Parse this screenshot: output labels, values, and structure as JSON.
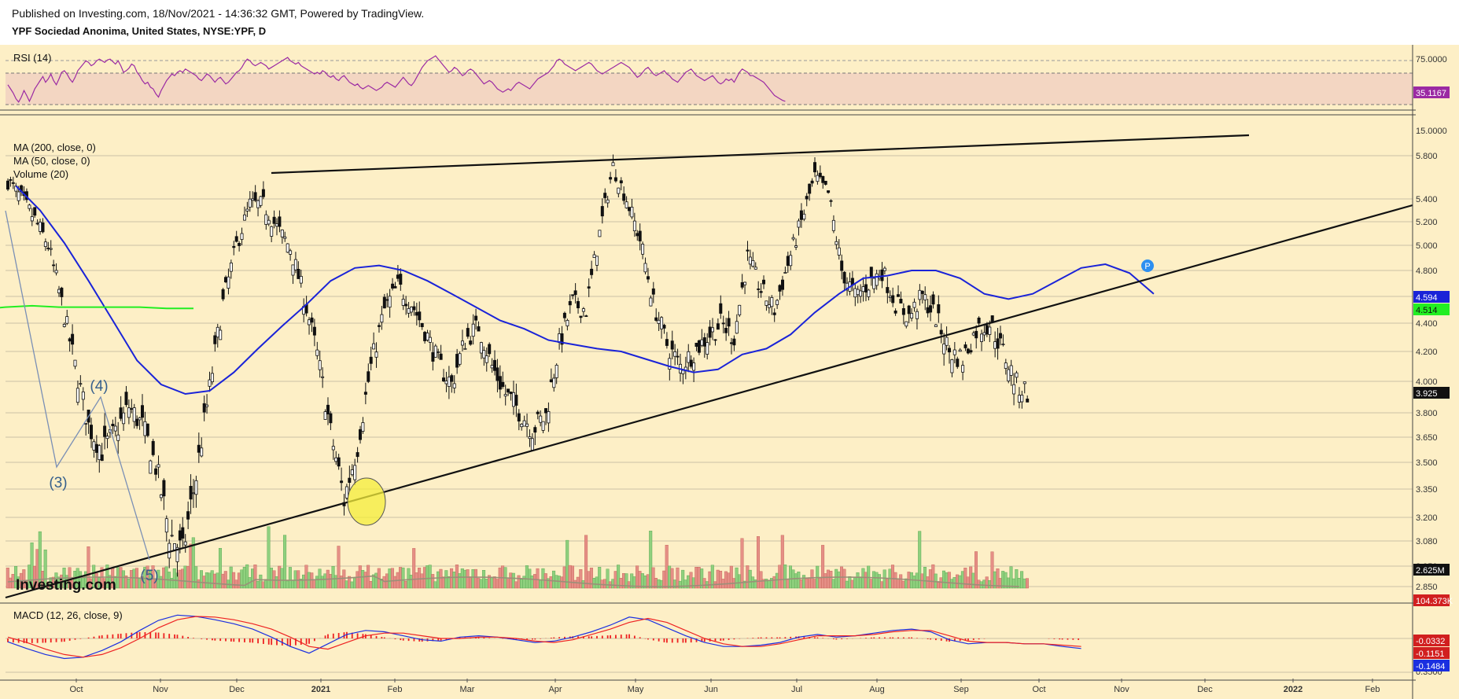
{
  "header": {
    "published": "Published on Investing.com, 18/Nov/2021 - 14:36:32 GMT, Powered by TradingView.",
    "symbol": "YPF Sociedad Anonima, United States, NYSE:YPF, D"
  },
  "watermark": "Investing.com",
  "colors": {
    "background": "#fdefc6",
    "ma200": "#22ee22",
    "ma50": "#1a23d8",
    "rsi": "#9b2aa3",
    "rsi_band": "#f3d6c2",
    "vol_up": "#8fd07e",
    "vol_down": "#e58f86",
    "macd": "#1a2fe0",
    "signal": "#ee2222"
  },
  "chart_data": [
    {
      "type": "line",
      "panel": "rsi",
      "title": "RSI (14)",
      "y_ticks": [
        "75.0000",
        "15.0000"
      ],
      "last_value_label": "35.1167",
      "band": [
        30,
        70
      ],
      "x_start": "2021-09-10",
      "x_step_days": 1,
      "values": [
        55,
        50,
        45,
        38,
        34,
        40,
        48,
        42,
        35,
        42,
        50,
        55,
        60,
        65,
        58,
        62,
        68,
        60,
        55,
        62,
        70,
        72,
        68,
        62,
        58,
        64,
        72,
        76,
        80,
        84,
        82,
        78,
        80,
        84,
        86,
        84,
        82,
        85,
        86,
        83,
        80,
        84,
        78,
        70,
        72,
        75,
        80,
        78,
        70,
        66,
        60,
        56,
        58,
        52,
        50,
        44,
        40,
        48,
        54,
        60,
        64,
        68,
        66,
        70,
        72,
        70,
        74,
        72,
        70,
        68,
        66,
        62,
        60,
        64,
        68,
        66,
        62,
        58,
        62,
        64,
        60,
        56,
        58,
        62,
        66,
        70,
        72,
        76,
        82,
        86,
        84,
        80,
        78,
        80,
        82,
        80,
        78,
        74,
        76,
        78,
        80,
        82,
        84,
        86,
        88,
        84,
        82,
        80,
        82,
        78,
        76,
        74,
        72,
        70,
        68,
        70,
        68,
        72,
        70,
        66,
        64,
        66,
        62,
        60,
        64,
        66,
        62,
        58,
        56,
        54,
        56,
        52,
        50,
        52,
        54,
        52,
        50,
        48,
        50,
        52,
        56,
        58,
        56,
        54,
        52,
        56,
        60,
        64,
        60,
        56,
        54,
        58,
        64,
        70,
        76,
        80,
        84,
        86,
        88,
        90,
        86,
        82,
        78,
        74,
        70,
        72,
        76,
        74,
        70,
        66,
        68,
        72,
        74,
        72,
        68,
        64,
        60,
        56,
        58,
        60,
        58,
        54,
        50,
        48,
        46,
        48,
        50,
        48,
        52,
        56,
        58,
        56,
        54,
        52,
        50,
        54,
        58,
        62,
        64,
        66,
        68,
        70,
        74,
        78,
        84,
        86,
        84,
        80,
        78,
        76,
        74,
        72,
        74,
        76,
        78,
        80,
        82,
        80,
        76,
        72,
        70,
        68,
        70,
        72,
        74,
        76,
        78,
        80,
        82,
        80,
        78,
        76,
        72,
        68,
        64,
        66,
        70,
        74,
        76,
        72,
        68,
        66,
        68,
        70,
        72,
        68,
        66,
        62,
        60,
        58,
        62,
        66,
        70,
        72,
        74,
        70,
        66,
        64,
        62,
        60,
        62,
        64,
        66,
        62,
        58,
        56,
        58,
        62,
        60,
        62,
        58,
        64,
        70,
        74,
        72,
        70,
        66,
        66,
        64,
        62,
        60,
        58,
        54,
        50,
        46,
        42,
        40,
        38,
        36,
        35
      ]
    },
    {
      "type": "candlestick",
      "panel": "price",
      "legend": [
        "MA (200, close, 0)",
        "MA (50, close, 0)",
        "Volume (20)"
      ],
      "x_ticks": [
        "Oct",
        "Nov",
        "Dec",
        "2021",
        "Feb",
        "Mar",
        "Apr",
        "May",
        "Jun",
        "Jul",
        "Aug",
        "Sep",
        "Oct",
        "Nov",
        "Dec",
        "2022",
        "Feb"
      ],
      "y_ticks": [
        "5.800",
        "5.400",
        "5.200",
        "5.000",
        "4.800",
        "4.600",
        "4.400",
        "4.200",
        "4.000",
        "3.800",
        "3.650",
        "3.500",
        "3.350",
        "3.200",
        "3.080",
        "2.950",
        "2.850"
      ],
      "price_labels": {
        "ma50": "4.594",
        "ma200": "4.514",
        "last": "3.925",
        "volume_ma": "2.625M",
        "volume": "104.373K"
      },
      "wave_labels": [
        "(3)",
        "(4)",
        "(5)"
      ],
      "marker": "P",
      "anchor_close": [
        5.57,
        5.4,
        5.22,
        5.0,
        4.55,
        4.1,
        3.72,
        3.57,
        3.68,
        3.84,
        3.72,
        3.48,
        3.12,
        3.02,
        3.42,
        3.95,
        4.55,
        5.0,
        5.35,
        5.35,
        5.15,
        4.98,
        4.6,
        4.18,
        3.68,
        3.29,
        3.6,
        4.1,
        4.5,
        4.68,
        4.55,
        4.35,
        4.12,
        3.98,
        4.28,
        4.38,
        4.1,
        3.92,
        3.82,
        3.7,
        3.78,
        4.25,
        4.55,
        4.5,
        5.1,
        5.7,
        5.4,
        5.05,
        4.55,
        4.25,
        4.1,
        4.2,
        4.3,
        4.4,
        4.3,
        4.9,
        4.65,
        4.5,
        4.85,
        5.2,
        5.6,
        5.45,
        4.8,
        4.6,
        4.7,
        4.8,
        4.55,
        4.45,
        4.6,
        4.45,
        4.2,
        4.15,
        4.35,
        4.4,
        4.2,
        3.98,
        3.925
      ],
      "anchor_step_days": 5,
      "x_start": "2021-09-10",
      "ma50_values": [
        5.52,
        5.3,
        5.02,
        4.72,
        4.42,
        4.14,
        3.98,
        3.92,
        3.94,
        4.06,
        4.22,
        4.38,
        4.54,
        4.72,
        4.82,
        4.84,
        4.8,
        4.72,
        4.62,
        4.52,
        4.42,
        4.36,
        4.28,
        4.25,
        4.22,
        4.2,
        4.15,
        4.1,
        4.06,
        4.08,
        4.18,
        4.22,
        4.32,
        4.48,
        4.62,
        4.74,
        4.76,
        4.8,
        4.8,
        4.74,
        4.62,
        4.58,
        4.62,
        4.72,
        4.82,
        4.85,
        4.78,
        4.62
      ],
      "ma50_start": "2021-09-13",
      "ma50_step_days": 9,
      "ma200_values": [
        4.88,
        4.84,
        4.8,
        4.72,
        4.62,
        4.5,
        4.45,
        4.42,
        4.4,
        4.39,
        4.38,
        4.38,
        4.4,
        4.42,
        4.44,
        4.46,
        4.5,
        4.52,
        4.53,
        4.52,
        4.52,
        4.52,
        4.52,
        4.51,
        4.51
      ],
      "ma200_start": "2021-03-23",
      "ma200_step_days": 10
    },
    {
      "type": "line",
      "panel": "macd",
      "title": "MACD (12, 26, close, 9)",
      "y_ticks": [
        "0.3500"
      ],
      "value_labels": {
        "histogram": "-0.0332",
        "signal": "-0.1151",
        "macd": "-0.1484"
      },
      "x_start": "2021-09-10",
      "step_days": 7,
      "macd_values": [
        -0.05,
        -0.15,
        -0.24,
        -0.3,
        -0.28,
        -0.18,
        -0.05,
        0.12,
        0.27,
        0.35,
        0.33,
        0.28,
        0.22,
        0.14,
        0.02,
        -0.12,
        -0.22,
        -0.08,
        0.06,
        0.12,
        0.1,
        0.04,
        -0.02,
        -0.04,
        0.02,
        0.04,
        0.02,
        -0.02,
        -0.06,
        -0.04,
        0.02,
        0.1,
        0.2,
        0.32,
        0.28,
        0.16,
        0.04,
        -0.06,
        -0.12,
        -0.12,
        -0.1,
        -0.06,
        0.02,
        0.06,
        0.02,
        0.04,
        0.08,
        0.12,
        0.14,
        0.1,
        -0.02,
        -0.08,
        -0.06,
        -0.06,
        -0.08,
        -0.08,
        -0.12,
        -0.15
      ],
      "signal_values": [
        0.02,
        -0.06,
        -0.16,
        -0.24,
        -0.28,
        -0.24,
        -0.14,
        0.0,
        0.16,
        0.28,
        0.33,
        0.32,
        0.28,
        0.22,
        0.14,
        0.02,
        -0.12,
        -0.16,
        -0.06,
        0.04,
        0.08,
        0.08,
        0.04,
        0.0,
        0.0,
        0.02,
        0.02,
        0.0,
        -0.04,
        -0.06,
        -0.02,
        0.06,
        0.14,
        0.24,
        0.3,
        0.24,
        0.12,
        0.0,
        -0.08,
        -0.12,
        -0.12,
        -0.08,
        -0.02,
        0.04,
        0.04,
        0.04,
        0.06,
        0.1,
        0.12,
        0.12,
        0.04,
        -0.04,
        -0.06,
        -0.06,
        -0.08,
        -0.08,
        -0.1,
        -0.12
      ]
    }
  ]
}
